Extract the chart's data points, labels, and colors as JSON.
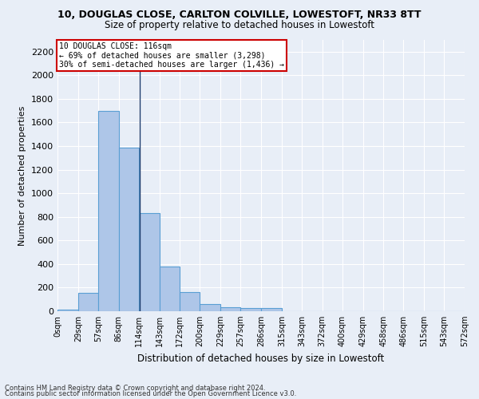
{
  "title_line1": "10, DOUGLAS CLOSE, CARLTON COLVILLE, LOWESTOFT, NR33 8TT",
  "title_line2": "Size of property relative to detached houses in Lowestoft",
  "xlabel": "Distribution of detached houses by size in Lowestoft",
  "ylabel": "Number of detached properties",
  "bar_values": [
    15,
    155,
    1700,
    1390,
    835,
    380,
    160,
    60,
    35,
    30,
    30,
    0,
    0,
    0,
    0,
    0,
    0,
    0,
    0,
    0
  ],
  "bar_color": "#aec6e8",
  "bar_edge_color": "#5a9fd4",
  "bin_edges": [
    0,
    29,
    57,
    86,
    114,
    143,
    172,
    200,
    229,
    257,
    286,
    315,
    343,
    372,
    400,
    429,
    458,
    486,
    515,
    543,
    572
  ],
  "tick_labels": [
    "0sqm",
    "29sqm",
    "57sqm",
    "86sqm",
    "114sqm",
    "143sqm",
    "172sqm",
    "200sqm",
    "229sqm",
    "257sqm",
    "286sqm",
    "315sqm",
    "343sqm",
    "372sqm",
    "400sqm",
    "429sqm",
    "458sqm",
    "486sqm",
    "515sqm",
    "543sqm",
    "572sqm"
  ],
  "ylim": [
    0,
    2300
  ],
  "yticks": [
    0,
    200,
    400,
    600,
    800,
    1000,
    1200,
    1400,
    1600,
    1800,
    2000,
    2200
  ],
  "vline_x": 116,
  "vline_color": "#1a3a6b",
  "annotation_text": "10 DOUGLAS CLOSE: 116sqm\n← 69% of detached houses are smaller (3,298)\n30% of semi-detached houses are larger (1,436) →",
  "annotation_box_color": "#ffffff",
  "annotation_box_edge": "#cc0000",
  "bg_color": "#e8eef7",
  "grid_color": "#ffffff",
  "footnote1": "Contains HM Land Registry data © Crown copyright and database right 2024.",
  "footnote2": "Contains public sector information licensed under the Open Government Licence v3.0."
}
